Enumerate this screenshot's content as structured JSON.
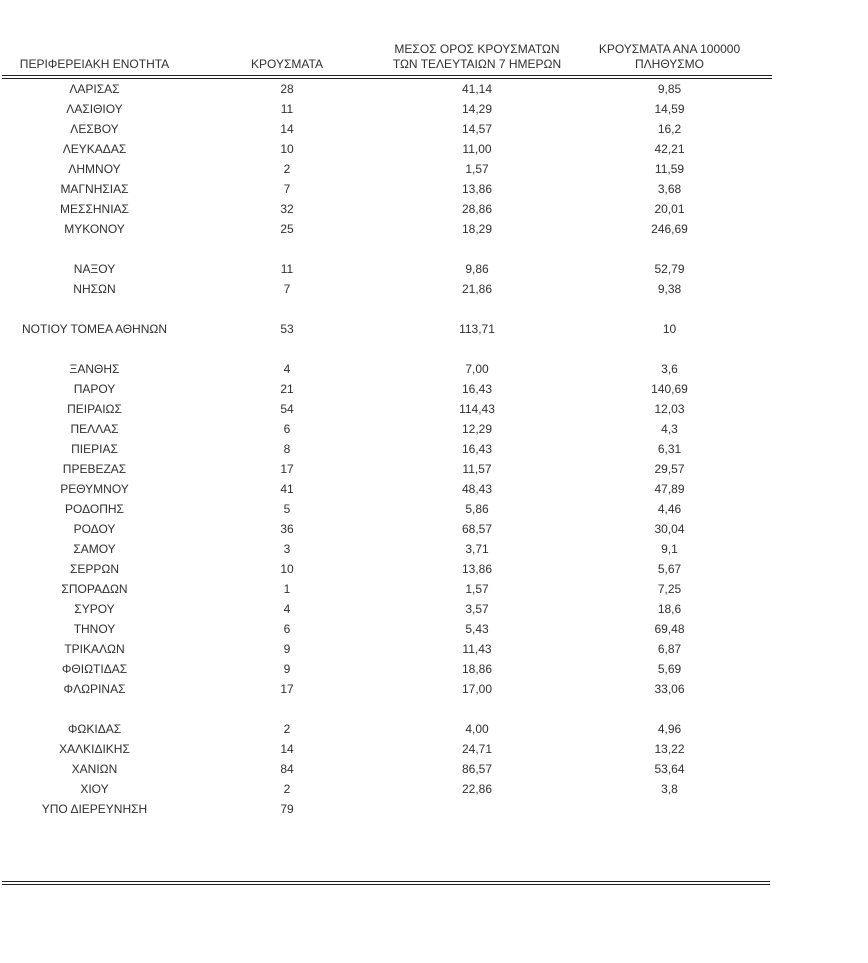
{
  "colors": {
    "background": "#ffffff",
    "text": "#303030",
    "rule": "#1f1f1f"
  },
  "table": {
    "columns": [
      {
        "key": "region",
        "label": "ΠΕΡΙΦΕΡΕΙΑΚΗ ΕΝΟΤΗΤΑ"
      },
      {
        "key": "cases",
        "label": "ΚΡΟΥΣΜΑΤΑ"
      },
      {
        "key": "avg7",
        "label": "ΜΕΣΟΣ ΟΡΟΣ ΚΡΟΥΣΜΑΤΩΝ\nΤΩΝ ΤΕΛΕΥΤΑΙΩΝ 7 ΗΜΕΡΩΝ"
      },
      {
        "key": "per100k",
        "label": "ΚΡΟΥΣΜΑΤΑ ΑΝΑ 100000\nΠΛΗΘΥΣΜΟ"
      }
    ],
    "rows": [
      {
        "region": "ΛΑΡΙΣΑΣ",
        "cases": "28",
        "avg7": "41,14",
        "per100k": "9,85"
      },
      {
        "region": "ΛΑΣΙΘΙΟΥ",
        "cases": "11",
        "avg7": "14,29",
        "per100k": "14,59"
      },
      {
        "region": "ΛΕΣΒΟΥ",
        "cases": "14",
        "avg7": "14,57",
        "per100k": "16,2"
      },
      {
        "region": "ΛΕΥΚΑΔΑΣ",
        "cases": "10",
        "avg7": "11,00",
        "per100k": "42,21"
      },
      {
        "region": "ΛΗΜΝΟΥ",
        "cases": "2",
        "avg7": "1,57",
        "per100k": "11,59"
      },
      {
        "region": "ΜΑΓΝΗΣΙΑΣ",
        "cases": "7",
        "avg7": "13,86",
        "per100k": "3,68"
      },
      {
        "region": "ΜΕΣΣΗΝΙΑΣ",
        "cases": "32",
        "avg7": "28,86",
        "per100k": "20,01"
      },
      {
        "region": "ΜΥΚΟΝΟΥ",
        "cases": "25",
        "avg7": "18,29",
        "per100k": "246,69"
      },
      {
        "blank": true
      },
      {
        "region": "ΝΑΞΟΥ",
        "cases": "11",
        "avg7": "9,86",
        "per100k": "52,79"
      },
      {
        "region": "ΝΗΣΩΝ",
        "cases": "7",
        "avg7": "21,86",
        "per100k": "9,38"
      },
      {
        "blank": true
      },
      {
        "region": "ΝΟΤΙΟΥ ΤΟΜΕΑ ΑΘΗΝΩΝ",
        "cases": "53",
        "avg7": "113,71",
        "per100k": "10"
      },
      {
        "blank": true
      },
      {
        "region": "ΞΑΝΘΗΣ",
        "cases": "4",
        "avg7": "7,00",
        "per100k": "3,6"
      },
      {
        "region": "ΠΑΡΟΥ",
        "cases": "21",
        "avg7": "16,43",
        "per100k": "140,69"
      },
      {
        "region": "ΠΕΙΡΑΙΩΣ",
        "cases": "54",
        "avg7": "114,43",
        "per100k": "12,03"
      },
      {
        "region": "ΠΕΛΛΑΣ",
        "cases": "6",
        "avg7": "12,29",
        "per100k": "4,3"
      },
      {
        "region": "ΠΙΕΡΙΑΣ",
        "cases": "8",
        "avg7": "16,43",
        "per100k": "6,31"
      },
      {
        "region": "ΠΡΕΒΕΖΑΣ",
        "cases": "17",
        "avg7": "11,57",
        "per100k": "29,57"
      },
      {
        "region": "ΡΕΘΥΜΝΟΥ",
        "cases": "41",
        "avg7": "48,43",
        "per100k": "47,89"
      },
      {
        "region": "ΡΟΔΟΠΗΣ",
        "cases": "5",
        "avg7": "5,86",
        "per100k": "4,46"
      },
      {
        "region": "ΡΟΔΟΥ",
        "cases": "36",
        "avg7": "68,57",
        "per100k": "30,04"
      },
      {
        "region": "ΣΑΜΟΥ",
        "cases": "3",
        "avg7": "3,71",
        "per100k": "9,1"
      },
      {
        "region": "ΣΕΡΡΩΝ",
        "cases": "10",
        "avg7": "13,86",
        "per100k": "5,67"
      },
      {
        "region": "ΣΠΟΡΑΔΩΝ",
        "cases": "1",
        "avg7": "1,57",
        "per100k": "7,25"
      },
      {
        "region": "ΣΥΡΟΥ",
        "cases": "4",
        "avg7": "3,57",
        "per100k": "18,6"
      },
      {
        "region": "ΤΗΝΟΥ",
        "cases": "6",
        "avg7": "5,43",
        "per100k": "69,48"
      },
      {
        "region": "ΤΡΙΚΑΛΩΝ",
        "cases": "9",
        "avg7": "11,43",
        "per100k": "6,87"
      },
      {
        "region": "ΦΘΙΩΤΙΔΑΣ",
        "cases": "9",
        "avg7": "18,86",
        "per100k": "5,69"
      },
      {
        "region": "ΦΛΩΡΙΝΑΣ",
        "cases": "17",
        "avg7": "17,00",
        "per100k": "33,06"
      },
      {
        "blank": true
      },
      {
        "region": "ΦΩΚΙΔΑΣ",
        "cases": "2",
        "avg7": "4,00",
        "per100k": "4,96"
      },
      {
        "region": "ΧΑΛΚΙΔΙΚΗΣ",
        "cases": "14",
        "avg7": "24,71",
        "per100k": "13,22"
      },
      {
        "region": "ΧΑΝΙΩΝ",
        "cases": "84",
        "avg7": "86,57",
        "per100k": "53,64"
      },
      {
        "region": "ΧΙΟΥ",
        "cases": "2",
        "avg7": "22,86",
        "per100k": "3,8"
      },
      {
        "region": "ΥΠΟ ΔΙΕΡΕΥΝΗΣΗ",
        "cases": "79",
        "avg7": "",
        "per100k": ""
      }
    ]
  }
}
